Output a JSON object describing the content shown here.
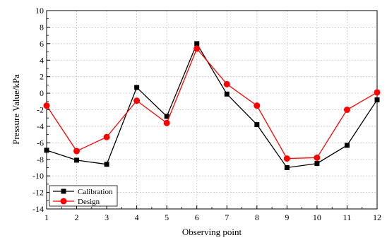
{
  "chart_data": {
    "type": "line",
    "title": "",
    "xlabel": "Observing point",
    "ylabel": "Pressure Value/kPa",
    "x": [
      1,
      2,
      3,
      4,
      5,
      6,
      7,
      8,
      9,
      10,
      11,
      12
    ],
    "xlim": [
      1,
      12
    ],
    "ylim": [
      -14,
      10
    ],
    "yticks": [
      -14,
      -12,
      -10,
      -8,
      -6,
      -4,
      -2,
      0,
      2,
      4,
      6,
      8,
      10
    ],
    "grid": true,
    "legend_position": "bottom-left",
    "series": [
      {
        "name": "Calibration",
        "color": "#000000",
        "marker": "square",
        "values": [
          -6.9,
          -8.1,
          -8.6,
          0.7,
          -2.8,
          6.0,
          -0.1,
          -3.8,
          -9.0,
          -8.5,
          -6.3,
          -0.8
        ]
      },
      {
        "name": "Design",
        "color": "#ff0000",
        "marker": "circle",
        "values": [
          -1.5,
          -7.0,
          -5.3,
          -0.9,
          -3.6,
          5.4,
          1.1,
          -1.5,
          -7.9,
          -7.8,
          -2.0,
          0.1
        ]
      }
    ]
  }
}
